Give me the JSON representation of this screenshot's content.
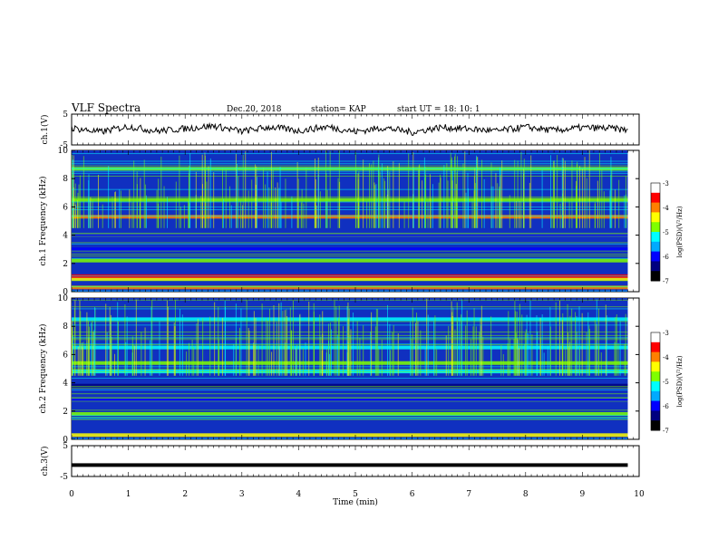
{
  "header": {
    "title": "VLF Spectra",
    "date": "Dec.20, 2018",
    "station": "station= KAP",
    "start_ut": "start  UT =   18: 10: 1"
  },
  "colors": {
    "waveform": "#000000",
    "colormap": [
      "#000080",
      "#0000ff",
      "#00aaff",
      "#00ffff",
      "#7fff00",
      "#ffff00",
      "#ff7f00",
      "#ff0000",
      "#ffffff"
    ]
  },
  "chart_data": [
    {
      "type": "line",
      "id": "ch1-waveform",
      "ylabel": "ch.1(V)",
      "ylim": [
        -5,
        5
      ],
      "yticks": [
        "5",
        "-5"
      ],
      "xlim": [
        0,
        10
      ],
      "description_series": "ch.1 voltage trace, oscillating roughly between -2 and +2 V over 0–9.8 min",
      "x": [
        0,
        0.5,
        1,
        1.5,
        2,
        2.5,
        3,
        3.5,
        4,
        4.5,
        5,
        5.5,
        6,
        6.5,
        7,
        7.5,
        8,
        8.5,
        9,
        9.5,
        9.8
      ],
      "y": [
        0.5,
        -0.8,
        1.0,
        -0.5,
        0.3,
        1.2,
        -0.6,
        0.8,
        -0.4,
        0.9,
        -0.7,
        0.6,
        -0.9,
        0.7,
        0.2,
        -0.5,
        0.8,
        -0.3,
        0.6,
        0.4,
        -0.2
      ]
    },
    {
      "type": "heatmap",
      "id": "ch1-spectrogram",
      "ylabel": "ch.1\nFrequency (kHz)",
      "ylim": [
        0,
        10
      ],
      "yticks": [
        "0",
        "2",
        "4",
        "6",
        "8",
        "10"
      ],
      "xlim": [
        0,
        10
      ],
      "colorbar": {
        "label": "log(PSD)(V²/Hz)",
        "ticks": [
          "-3",
          "-4",
          "-5",
          "-6",
          "-7"
        ],
        "range": [
          -7,
          -3
        ]
      },
      "bands_khz": [
        {
          "f": 0.3,
          "level": -4.0
        },
        {
          "f": 0.9,
          "level": -4.5
        },
        {
          "f": 1.1,
          "level": -3.5
        },
        {
          "f": 2.2,
          "level": -4.7
        },
        {
          "f": 3.0,
          "level": -6.5
        },
        {
          "f": 4.0,
          "level": -6.2
        },
        {
          "f": 5.3,
          "level": -3.8
        },
        {
          "f": 6.5,
          "level": -4.8
        },
        {
          "f": 8.7,
          "level": -4.8
        }
      ]
    },
    {
      "type": "heatmap",
      "id": "ch2-spectrogram",
      "ylabel": "ch.2\nFrequency (kHz)",
      "ylim": [
        0,
        10
      ],
      "yticks": [
        "0",
        "2",
        "4",
        "6",
        "8",
        "10"
      ],
      "xlim": [
        0,
        10
      ],
      "colorbar": {
        "label": "log(PSD)(V²/Hz)",
        "ticks": [
          "-3",
          "-4",
          "-5",
          "-6",
          "-7"
        ],
        "range": [
          -7,
          -3
        ]
      },
      "bands_khz": [
        {
          "f": 0.3,
          "level": -4.5
        },
        {
          "f": 1.8,
          "level": -5.0
        },
        {
          "f": 2.8,
          "level": -6.3
        },
        {
          "f": 3.8,
          "level": -6.6
        },
        {
          "f": 4.8,
          "level": -5.3
        },
        {
          "f": 5.4,
          "level": -4.7
        },
        {
          "f": 6.5,
          "level": -5.2
        },
        {
          "f": 8.5,
          "level": -5.5
        }
      ]
    },
    {
      "type": "line",
      "id": "ch3-waveform",
      "ylabel": "ch.3(V)",
      "ylim": [
        -5,
        5
      ],
      "yticks": [
        "5",
        "-5"
      ],
      "xlim": [
        0,
        10
      ],
      "x": [
        0,
        9.8
      ],
      "y": [
        -1.3,
        -1.3
      ]
    }
  ],
  "xaxis": {
    "label": "Time  (min)",
    "ticks": [
      "0",
      "1",
      "2",
      "3",
      "4",
      "5",
      "6",
      "7",
      "8",
      "9",
      "10"
    ]
  }
}
